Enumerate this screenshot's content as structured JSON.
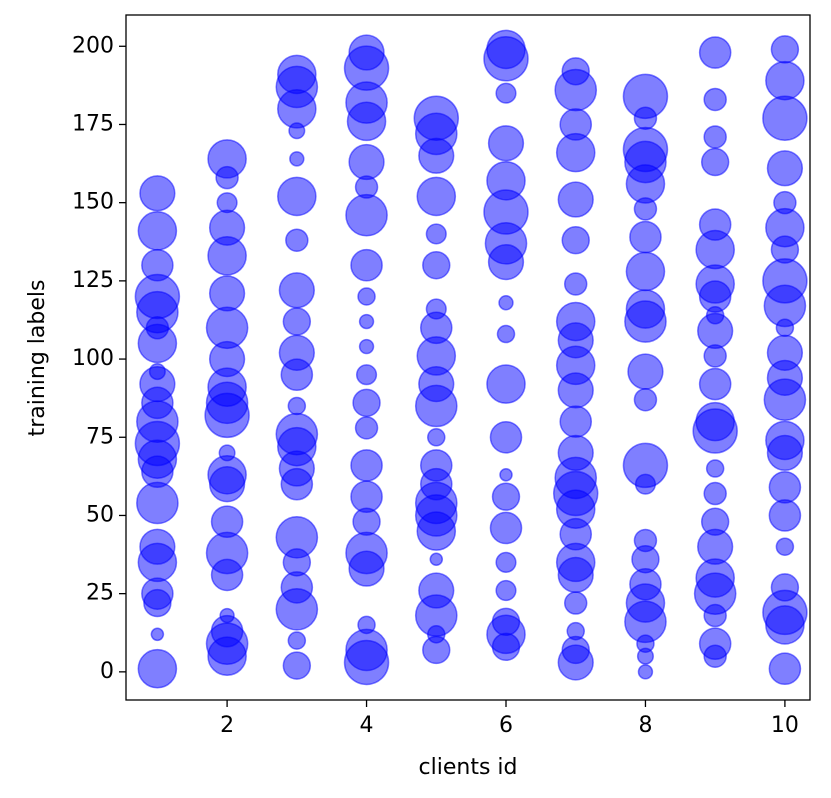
{
  "chart_data": {
    "type": "scatter",
    "xlabel": "clients id",
    "ylabel": "training labels",
    "color": "#0000ff",
    "xlim": [
      0.55,
      10.36
    ],
    "ylim": [
      -9,
      210
    ],
    "xticks": [
      2,
      4,
      6,
      8,
      10
    ],
    "yticks": [
      0,
      25,
      50,
      75,
      100,
      125,
      150,
      175,
      200
    ],
    "x": [
      1,
      1,
      1,
      1,
      1,
      1,
      1,
      1,
      1,
      1,
      1,
      1,
      1,
      1,
      1,
      1,
      1,
      1,
      1,
      1,
      1,
      2,
      2,
      2,
      2,
      2,
      2,
      2,
      2,
      2,
      2,
      2,
      2,
      2,
      2,
      2,
      2,
      2,
      2,
      2,
      2,
      2,
      3,
      3,
      3,
      3,
      3,
      3,
      3,
      3,
      3,
      3,
      3,
      3,
      3,
      3,
      3,
      3,
      3,
      3,
      3,
      3,
      3,
      3,
      4,
      4,
      4,
      4,
      4,
      4,
      4,
      4,
      4,
      4,
      4,
      4,
      4,
      4,
      4,
      4,
      4,
      4,
      4,
      4,
      4,
      4,
      5,
      5,
      5,
      5,
      5,
      5,
      5,
      5,
      5,
      5,
      5,
      5,
      5,
      5,
      5,
      5,
      5,
      5,
      5,
      5,
      5,
      5,
      6,
      6,
      6,
      6,
      6,
      6,
      6,
      6,
      6,
      6,
      6,
      6,
      6,
      6,
      6,
      6,
      6,
      6,
      6,
      6,
      7,
      7,
      7,
      7,
      7,
      7,
      7,
      7,
      7,
      7,
      7,
      7,
      7,
      7,
      7,
      7,
      7,
      7,
      7,
      7,
      7,
      7,
      7,
      8,
      8,
      8,
      8,
      8,
      8,
      8,
      8,
      8,
      8,
      8,
      8,
      8,
      8,
      8,
      8,
      8,
      8,
      8,
      8,
      8,
      8,
      9,
      9,
      9,
      9,
      9,
      9,
      9,
      9,
      9,
      9,
      9,
      9,
      9,
      9,
      9,
      9,
      9,
      9,
      9,
      9,
      9,
      9,
      9,
      10,
      10,
      10,
      10,
      10,
      10,
      10,
      10,
      10,
      10,
      10,
      10,
      10,
      10,
      10,
      10,
      10,
      10,
      10,
      10,
      10,
      10
    ],
    "values": [
      1,
      12,
      22,
      25,
      35,
      40,
      54,
      64,
      68,
      73,
      80,
      86,
      92,
      96,
      105,
      110,
      115,
      120,
      130,
      141,
      153,
      5,
      9,
      13,
      18,
      31,
      38,
      48,
      60,
      63,
      70,
      82,
      86,
      91,
      100,
      110,
      121,
      133,
      142,
      150,
      158,
      164,
      2,
      10,
      20,
      27,
      35,
      43,
      60,
      65,
      72,
      76,
      85,
      95,
      102,
      112,
      122,
      138,
      152,
      164,
      173,
      180,
      187,
      191,
      3,
      7,
      15,
      33,
      38,
      48,
      56,
      66,
      78,
      86,
      95,
      104,
      112,
      120,
      130,
      146,
      155,
      163,
      176,
      182,
      193,
      198,
      7,
      12,
      18,
      26,
      36,
      45,
      50,
      54,
      60,
      66,
      75,
      85,
      92,
      101,
      110,
      116,
      130,
      140,
      152,
      165,
      172,
      177,
      8,
      12,
      16,
      26,
      35,
      46,
      56,
      63,
      75,
      92,
      108,
      118,
      131,
      137,
      147,
      157,
      169,
      185,
      196,
      199,
      3,
      7,
      13,
      22,
      31,
      35,
      44,
      52,
      57,
      62,
      70,
      80,
      90,
      98,
      106,
      112,
      124,
      138,
      151,
      166,
      175,
      186,
      192,
      0,
      5,
      9,
      16,
      22,
      28,
      36,
      42,
      60,
      66,
      87,
      96,
      112,
      116,
      128,
      139,
      148,
      156,
      163,
      167,
      177,
      184,
      5,
      9,
      18,
      25,
      30,
      40,
      48,
      57,
      65,
      77,
      80,
      92,
      101,
      109,
      114,
      120,
      124,
      135,
      143,
      163,
      171,
      183,
      198,
      1,
      15,
      19,
      27,
      40,
      50,
      59,
      70,
      74,
      87,
      94,
      102,
      110,
      117,
      125,
      135,
      142,
      150,
      161,
      177,
      189,
      199
    ],
    "sizes": [
      300,
      30,
      150,
      200,
      300,
      250,
      350,
      200,
      300,
      400,
      350,
      200,
      250,
      50,
      300,
      100,
      350,
      400,
      200,
      300,
      250,
      300,
      350,
      200,
      40,
      200,
      350,
      200,
      250,
      300,
      50,
      400,
      350,
      300,
      250,
      350,
      250,
      300,
      250,
      80,
      100,
      300,
      150,
      60,
      350,
      200,
      150,
      350,
      200,
      250,
      300,
      350,
      60,
      200,
      250,
      150,
      250,
      100,
      300,
      40,
      50,
      300,
      350,
      300,
      400,
      350,
      60,
      250,
      350,
      150,
      200,
      200,
      100,
      150,
      80,
      40,
      40,
      60,
      200,
      350,
      100,
      250,
      300,
      350,
      400,
      250,
      150,
      60,
      350,
      250,
      30,
      300,
      350,
      350,
      200,
      200,
      60,
      350,
      250,
      300,
      200,
      80,
      150,
      80,
      300,
      250,
      350,
      400,
      150,
      300,
      150,
      80,
      80,
      200,
      150,
      30,
      200,
      300,
      60,
      40,
      250,
      350,
      400,
      300,
      250,
      80,
      400,
      300,
      250,
      150,
      60,
      100,
      250,
      300,
      200,
      300,
      400,
      350,
      250,
      200,
      250,
      300,
      250,
      300,
      100,
      150,
      250,
      300,
      200,
      350,
      150,
      40,
      50,
      60,
      350,
      300,
      200,
      150,
      100,
      80,
      400,
      100,
      250,
      350,
      300,
      300,
      200,
      100,
      300,
      350,
      400,
      100,
      400,
      100,
      200,
      100,
      350,
      300,
      250,
      150,
      100,
      60,
      400,
      300,
      200,
      100,
      250,
      60,
      200,
      300,
      300,
      200,
      150,
      100,
      100,
      200,
      200,
      300,
      400,
      150,
      60,
      200,
      200,
      250,
      300,
      350,
      250,
      250,
      60,
      350,
      400,
      150,
      300,
      100,
      250,
      400,
      300,
      150
    ]
  }
}
